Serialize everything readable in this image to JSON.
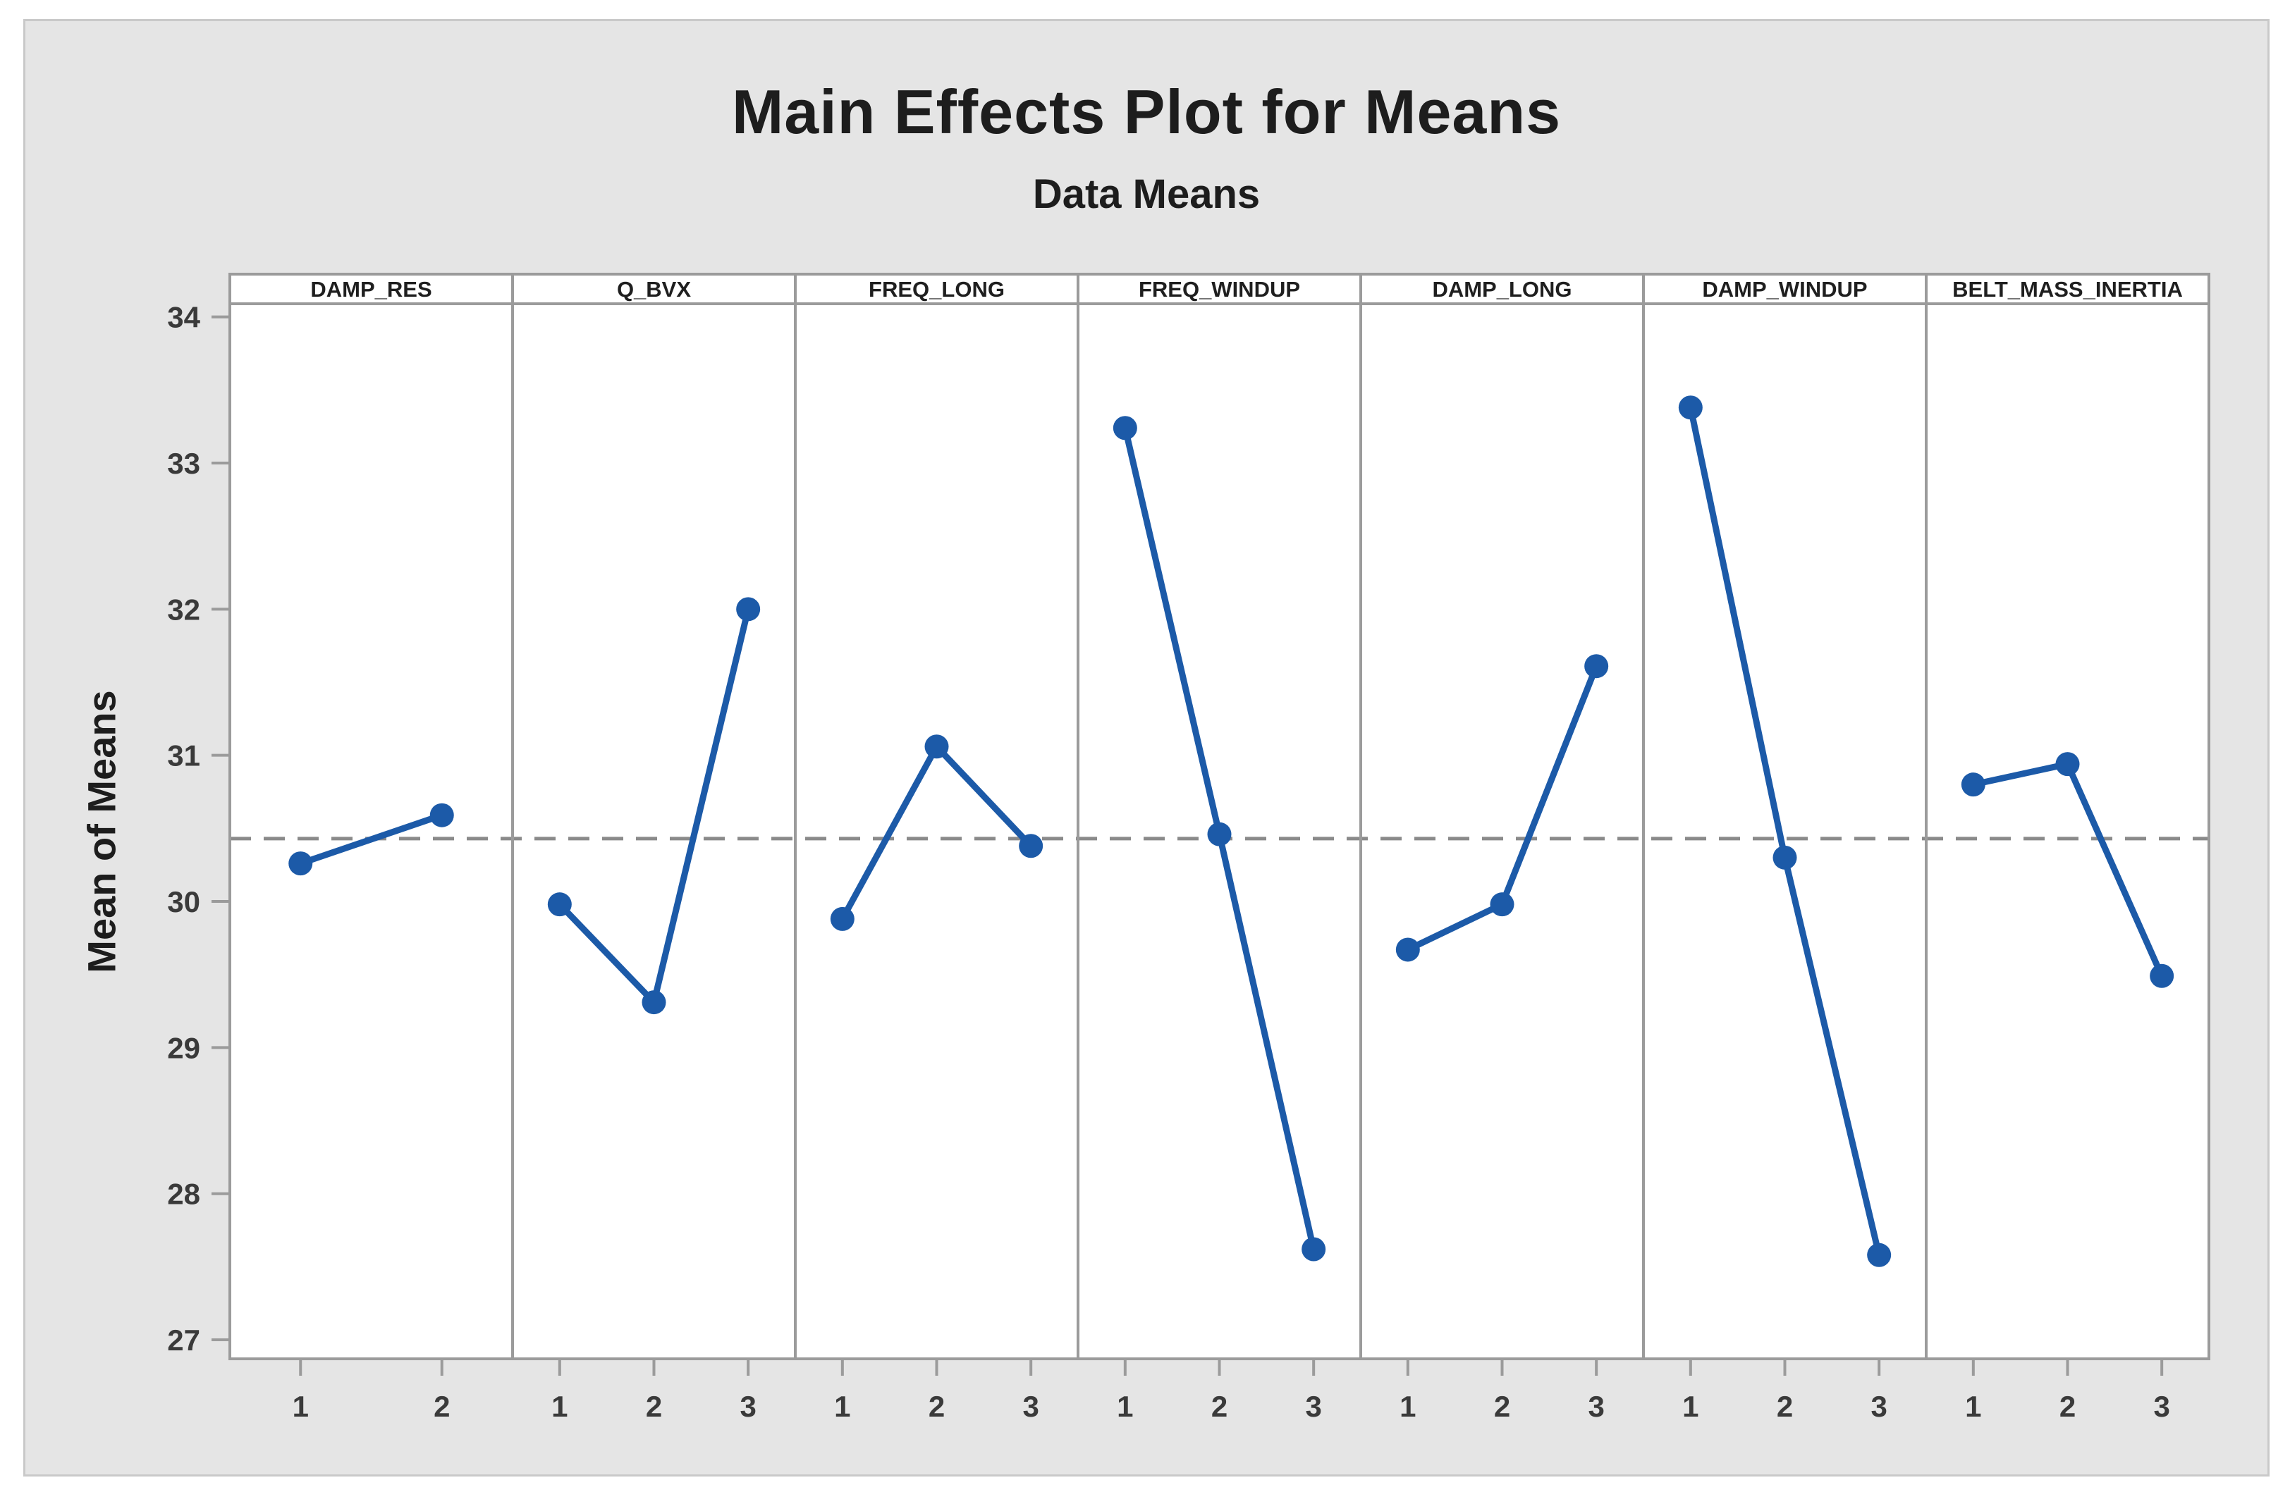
{
  "chart_data": {
    "type": "line",
    "title": "Main Effects Plot for Means",
    "subtitle": "Data Means",
    "ylabel": "Mean of Means",
    "y_ticks": [
      34,
      33,
      32,
      31,
      30,
      29,
      28,
      27
    ],
    "ylim": [
      26.87,
      34.09
    ],
    "reference_line": 30.43,
    "grid": "off",
    "legend": "none",
    "panels": [
      {
        "factor": "DAMP_RES",
        "levels": [
          "1",
          "2"
        ],
        "means": [
          30.26,
          30.59
        ]
      },
      {
        "factor": "Q_BVX",
        "levels": [
          "1",
          "2",
          "3"
        ],
        "means": [
          29.98,
          29.31,
          32.0
        ]
      },
      {
        "factor": "FREQ_LONG",
        "levels": [
          "1",
          "2",
          "3"
        ],
        "means": [
          29.88,
          31.06,
          30.38
        ]
      },
      {
        "factor": "FREQ_WINDUP",
        "levels": [
          "1",
          "2",
          "3"
        ],
        "means": [
          33.24,
          30.46,
          27.62
        ]
      },
      {
        "factor": "DAMP_LONG",
        "levels": [
          "1",
          "2",
          "3"
        ],
        "means": [
          29.67,
          29.98,
          31.61
        ]
      },
      {
        "factor": "DAMP_WINDUP",
        "levels": [
          "1",
          "2",
          "3"
        ],
        "means": [
          33.38,
          30.3,
          27.58
        ]
      },
      {
        "factor": "BELT_MASS_INERTIA",
        "levels": [
          "1",
          "2",
          "3"
        ],
        "means": [
          30.8,
          30.94,
          29.49
        ]
      }
    ],
    "colors": {
      "series": "#1c5aa8",
      "reference_line": "#8a8a8a",
      "frame": "#9b9b9b",
      "panel_bg": "#ffffff",
      "canvas_bg": "#e5e5e5",
      "tick_text": "#3a3a3a",
      "header_text": "#1f1f1f"
    }
  }
}
